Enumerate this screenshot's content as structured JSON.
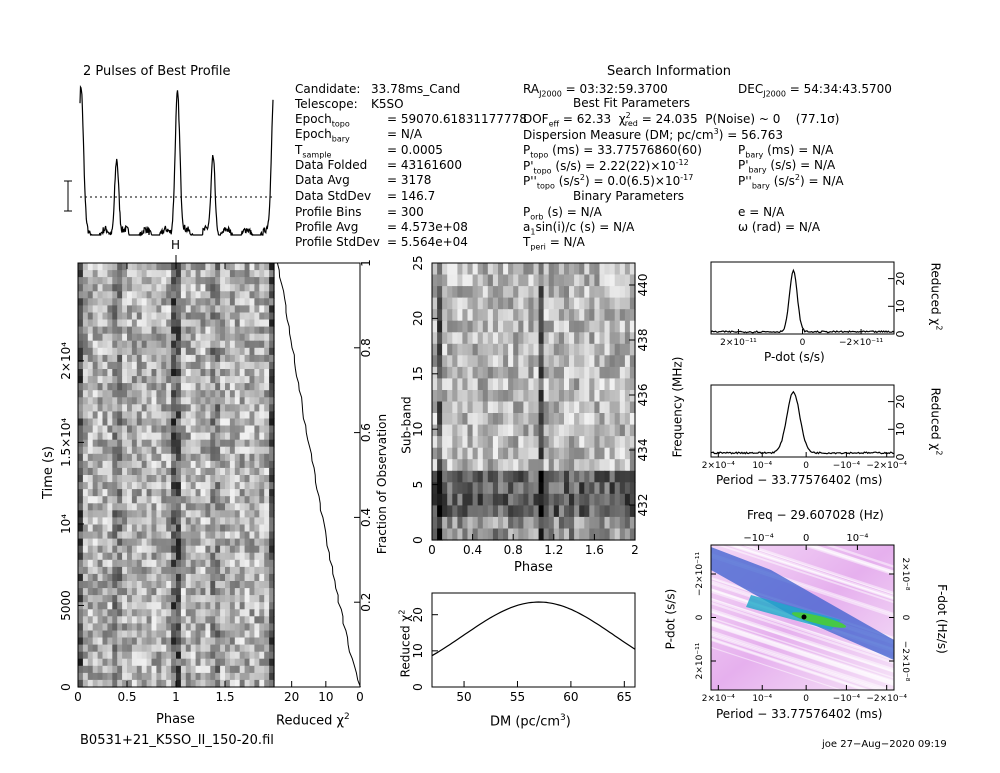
{
  "profile_title": "2 Pulses of Best Profile",
  "search_title": "Search Information",
  "candidate_info": [
    {
      "k": "Candidate:",
      "v": "33.78ms_Cand"
    },
    {
      "k": "Telescope:",
      "v": "K5SO"
    },
    {
      "k": "Epoch",
      "sub": "topo",
      "v": "= 59070.61831177778"
    },
    {
      "k": "Epoch",
      "sub": "bary",
      "v": "= N/A"
    },
    {
      "k": "T",
      "sub": "sample",
      "v": "= 0.0005"
    },
    {
      "k": "Data Folded",
      "v": "= 43161600"
    },
    {
      "k": "Data Avg",
      "v": "= 3178"
    },
    {
      "k": "Data StdDev",
      "v": "= 146.7"
    },
    {
      "k": "Profile Bins",
      "v": "= 300"
    },
    {
      "k": "Profile Avg",
      "v": "= 4.573e+08"
    },
    {
      "k": "Profile StdDev",
      "v": "= 5.564e+04"
    }
  ],
  "search_info": {
    "ra": "RA",
    "ra_sub": "J2000",
    "ra_val": "= 03:32:59.3700",
    "dec": "DEC",
    "dec_sub": "J2000",
    "dec_val": "= 54:34:43.5700",
    "best_fit_title": "Best Fit Parameters",
    "dof": "DOF",
    "dof_sub": "eff",
    "dof_val": "= 62.33",
    "chi": "χ",
    "chi_sup": "2",
    "chi_sub": "red",
    "chi_val": "= 24.035",
    "pnoise": "P(Noise) ~ 0",
    "sigma": "(77.1σ)",
    "dm_line": "Dispersion Measure (DM; pc/cm",
    "dm_sup": "3",
    "dm_val": ") = 56.763",
    "ptopo": "P",
    "ptopo_sub": "topo",
    "ptopo_val": "(ms) =  33.77576860(60)",
    "pbary": "P",
    "pbary_sub": "bary",
    "pbary_val": "(ms) = N/A",
    "pdtopo": "P'",
    "pdtopo_sub": "topo",
    "pdtopo_val": "(s/s) =  2.22(22)×10",
    "pdtopo_exp": "-12",
    "pdbary": "P'",
    "pdbary_sub": "bary",
    "pdbary_val": "(s/s) = N/A",
    "pddtopo": "P''",
    "pddtopo_sub": "topo",
    "pddtopo_val": "(s/s",
    "pddtopo_sup": "2",
    "pddtopo_val2": ") = 0.0(6.5)×10",
    "pddtopo_exp": "-17",
    "pddbary": "P''",
    "pddbary_sub": "bary",
    "pddbary_val": "(s/s",
    "pddbary_sup": "2",
    "pddbary_val2": ") = N/A",
    "binary_title": "Binary Parameters",
    "porb": "P",
    "porb_sub": "orb",
    "porb_val": "(s) = N/A",
    "e": "e = N/A",
    "asini": "a",
    "asini_sub": "1",
    "asini_val": "sin(i)/c (s) = N/A",
    "omega": "ω (rad) = N/A",
    "tperi": "T",
    "tperi_sub": "peri",
    "tperi_val": "= N/A"
  },
  "labels": {
    "phase": "Phase",
    "time": "Time (s)",
    "reduced_chi": "Reduced χ",
    "chi_sup": "2",
    "fraction": "Fraction of Observation",
    "subband": "Sub-band",
    "frequency": "Frequency (MHz)",
    "dm": "DM (pc/cm",
    "dm_sup": "3",
    "dm_close": ")",
    "pdot_axis": "P-dot (s/s)",
    "period_axis": "Period − 33.77576402 (ms)",
    "freq_axis": "Freq − 29.607028 (Hz)",
    "fdot_axis": "F-dot (Hz/s)",
    "filename": "B0531+21_K5SO_II_150-20.fil",
    "stamp": "joe 27−Aug−2020 09:19",
    "h_marker": "H"
  },
  "chart_data": [
    {
      "type": "line",
      "title": "2 Pulses of Best Profile",
      "x": [
        0,
        0.5,
        1,
        1.5,
        2
      ],
      "peaks": [
        {
          "phase": 0.02,
          "rel": 0.92
        },
        {
          "phase": 0.37,
          "rel": 0.55
        },
        {
          "phase": 1.02,
          "rel": 1.0
        },
        {
          "phase": 1.37,
          "rel": 0.55
        },
        {
          "phase": 1.98,
          "rel": 0.85
        }
      ]
    },
    {
      "type": "heatmap",
      "name": "time-phase",
      "xlabel": "Phase",
      "ylabel": "Time (s)",
      "xlim": [
        0,
        2
      ],
      "ylim": [
        0,
        26000
      ],
      "xticks": [
        "0",
        "0.5",
        "1",
        "1.5"
      ],
      "yticks": [
        "0",
        "5000",
        "10⁴",
        "1.5×10⁴",
        "2×10⁴"
      ]
    },
    {
      "type": "line",
      "name": "reduced-chi-vs-fraction",
      "xlabel": "Reduced χ2",
      "xticks": [
        "20",
        "10",
        "0"
      ],
      "yticks": [
        "0.2",
        "0.4",
        "0.6",
        "0.8",
        "1"
      ],
      "ylabel": "Fraction of Observation"
    },
    {
      "type": "heatmap",
      "name": "subband-phase",
      "xlabel": "Phase",
      "ylabel": "Sub-band",
      "xticks": [
        "0",
        "0.4",
        "0.8",
        "1.2",
        "1.6",
        "2"
      ],
      "yticks": [
        "0",
        "5",
        "10",
        "15",
        "20",
        "25"
      ],
      "y2ticks": [
        "432",
        "434",
        "436",
        "438",
        "440"
      ],
      "y2label": "Frequency (MHz)"
    },
    {
      "type": "line",
      "name": "chi-vs-dm",
      "xlabel": "DM (pc/cm3)",
      "ylabel": "Reduced χ2",
      "xlim": [
        47,
        66
      ],
      "ylim": [
        0,
        26
      ],
      "xticks": [
        "50",
        "55",
        "60",
        "65"
      ],
      "yticks": [
        "0",
        "10",
        "20"
      ],
      "peak": {
        "x": 57,
        "y": 23.5
      }
    },
    {
      "type": "line",
      "name": "chi-vs-pdot",
      "xlabel": "P-dot (s/s)",
      "ylabel": "Reduced χ2",
      "xticks": [
        "2×10⁻¹¹",
        "0",
        "−2×10⁻¹¹"
      ],
      "yticks": [
        "0",
        "10",
        "20"
      ]
    },
    {
      "type": "line",
      "name": "chi-vs-period",
      "xlabel": "Period − 33.77576402 (ms)",
      "ylabel": "Reduced χ2",
      "xticks": [
        "2×10⁻⁴",
        "10⁻⁴",
        "0",
        "−10⁻⁴",
        "−2×10⁻⁴"
      ],
      "yticks": [
        "0",
        "10",
        "20"
      ]
    },
    {
      "type": "heatmap",
      "name": "pdot-period",
      "xlabel": "Period − 33.77576402 (ms)",
      "ylabel": "P-dot (s/s)",
      "top_label": "Freq − 29.607028 (Hz)",
      "top_ticks": [
        "−10⁻⁴",
        "0",
        "10⁻⁴"
      ],
      "xticks": [
        "2×10⁻⁴",
        "10⁻⁴",
        "0",
        "−10⁻⁴",
        "−2×10⁻⁴"
      ],
      "yticks": [
        "2×10⁻¹¹",
        "0",
        "−2×10⁻¹¹"
      ],
      "y2ticks": [
        "2×10⁻⁸",
        "0",
        "−2×10⁻⁸"
      ],
      "y2label": "F-dot (Hz/s)"
    }
  ]
}
